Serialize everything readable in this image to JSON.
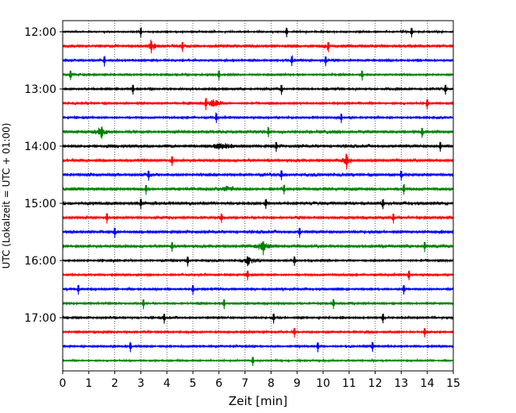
{
  "chart_data": {
    "type": "line",
    "title": "",
    "xlabel": "Zeit  [min]",
    "ylabel": "UTC (Lokalzeit = UTC + 01:00)",
    "xlim": [
      0,
      15
    ],
    "x_ticks": [
      0,
      1,
      2,
      3,
      4,
      5,
      6,
      7,
      8,
      9,
      10,
      11,
      12,
      13,
      14,
      15
    ],
    "x_tick_labels": [
      "0",
      "1",
      "2",
      "3",
      "4",
      "5",
      "6",
      "7",
      "8",
      "9",
      "10",
      "11",
      "12",
      "13",
      "14",
      "15"
    ],
    "y_tick_labels": [
      "12:00",
      "13:00",
      "14:00",
      "15:00",
      "16:00",
      "17:00"
    ],
    "rows_per_hour": 4,
    "start_time": "12:00",
    "grid": "vertical dotted",
    "trace_colors": [
      "#000000",
      "#ff0000",
      "#0000ff",
      "#008000"
    ],
    "rows": [
      {
        "time": "12:00",
        "color": "#000000",
        "spikes": [
          3.0,
          8.6,
          13.4
        ],
        "burst": [],
        "noise": 0.4
      },
      {
        "time": "12:15",
        "color": "#ff0000",
        "spikes": [
          3.4,
          4.6,
          10.2
        ],
        "burst": [
          3.2,
          3.7
        ],
        "noise": 0.6
      },
      {
        "time": "12:30",
        "color": "#0000ff",
        "spikes": [
          1.6,
          8.8,
          10.1
        ],
        "burst": [],
        "noise": 0.5
      },
      {
        "time": "12:45",
        "color": "#008000",
        "spikes": [
          0.3,
          6.0,
          11.5
        ],
        "burst": [],
        "noise": 0.5
      },
      {
        "time": "13:00",
        "color": "#000000",
        "spikes": [
          2.7,
          8.4,
          14.7
        ],
        "burst": [],
        "noise": 0.5
      },
      {
        "time": "13:15",
        "color": "#ff0000",
        "spikes": [
          5.5,
          14.0
        ],
        "burst": [
          5.3,
          6.3
        ],
        "noise": 0.5
      },
      {
        "time": "13:30",
        "color": "#0000ff",
        "spikes": [
          5.9,
          10.7
        ],
        "burst": [],
        "noise": 0.5
      },
      {
        "time": "13:45",
        "color": "#008000",
        "spikes": [
          1.5,
          7.9,
          13.8
        ],
        "burst": [
          1.0,
          1.9
        ],
        "noise": 0.6
      },
      {
        "time": "14:00",
        "color": "#000000",
        "spikes": [
          8.2,
          14.5
        ],
        "burst": [
          5.5,
          6.8
        ],
        "noise": 0.6
      },
      {
        "time": "14:15",
        "color": "#ff0000",
        "spikes": [
          4.2,
          10.9
        ],
        "burst": [
          10.6,
          11.2
        ],
        "noise": 0.6
      },
      {
        "time": "14:30",
        "color": "#0000ff",
        "spikes": [
          3.3,
          8.4,
          13.0
        ],
        "burst": [],
        "noise": 0.6
      },
      {
        "time": "14:45",
        "color": "#008000",
        "spikes": [
          3.2,
          8.5,
          13.1
        ],
        "burst": [
          6.0,
          6.8
        ],
        "noise": 0.6
      },
      {
        "time": "15:00",
        "color": "#000000",
        "spikes": [
          3.0,
          7.8,
          12.3
        ],
        "burst": [],
        "noise": 0.6
      },
      {
        "time": "15:15",
        "color": "#ff0000",
        "spikes": [
          1.7,
          6.1,
          12.7
        ],
        "burst": [],
        "noise": 0.6
      },
      {
        "time": "15:30",
        "color": "#0000ff",
        "spikes": [
          2.0,
          9.1
        ],
        "burst": [],
        "noise": 0.6
      },
      {
        "time": "15:45",
        "color": "#008000",
        "spikes": [
          4.2,
          7.7,
          13.9
        ],
        "burst": [
          7.2,
          8.2
        ],
        "noise": 0.6
      },
      {
        "time": "16:00",
        "color": "#000000",
        "spikes": [
          4.8,
          7.1,
          8.9
        ],
        "burst": [
          6.8,
          7.6
        ],
        "noise": 0.5
      },
      {
        "time": "16:15",
        "color": "#ff0000",
        "spikes": [
          7.1,
          13.3
        ],
        "burst": [],
        "noise": 0.5
      },
      {
        "time": "16:30",
        "color": "#0000ff",
        "spikes": [
          0.6,
          5.0,
          13.1
        ],
        "burst": [],
        "noise": 0.5
      },
      {
        "time": "16:45",
        "color": "#008000",
        "spikes": [
          3.1,
          6.2,
          10.4
        ],
        "burst": [],
        "noise": 0.5
      },
      {
        "time": "17:00",
        "color": "#000000",
        "spikes": [
          3.9,
          8.1,
          12.3
        ],
        "burst": [],
        "noise": 0.5
      },
      {
        "time": "17:15",
        "color": "#ff0000",
        "spikes": [
          8.9,
          13.9
        ],
        "burst": [],
        "noise": 0.5
      },
      {
        "time": "17:30",
        "color": "#0000ff",
        "spikes": [
          2.6,
          9.8,
          11.9
        ],
        "burst": [],
        "noise": 0.5
      },
      {
        "time": "17:45",
        "color": "#008000",
        "spikes": [
          7.3
        ],
        "burst": [],
        "noise": 0.4
      }
    ]
  }
}
